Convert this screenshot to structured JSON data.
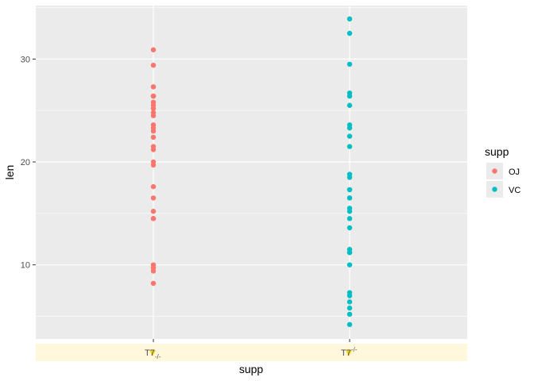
{
  "chart_data": {
    "type": "scatter",
    "xlabel": "supp",
    "ylabel": "len",
    "categories": [
      "OJ",
      "VC"
    ],
    "x_tick_labels": [
      {
        "base": "T7",
        "sub": "-/-"
      },
      {
        "base": "T7",
        "sup": "-/-"
      }
    ],
    "ylim": [
      2.8,
      35.2
    ],
    "yticks": [
      10,
      20,
      30
    ],
    "grid": true,
    "legend": {
      "title": "supp",
      "position": "right",
      "entries": [
        {
          "label": "OJ",
          "color": "#F8766D"
        },
        {
          "label": "VC",
          "color": "#00BFC4"
        }
      ]
    },
    "series": [
      {
        "name": "OJ",
        "color": "#F8766D",
        "category": "OJ",
        "values": [
          15.2,
          21.5,
          17.6,
          9.7,
          14.5,
          10.0,
          8.2,
          9.4,
          16.5,
          9.7,
          19.7,
          23.3,
          23.6,
          26.4,
          20.0,
          25.2,
          25.8,
          21.2,
          14.5,
          27.3,
          25.5,
          26.4,
          22.4,
          24.5,
          24.8,
          30.9,
          26.4,
          27.3,
          29.4,
          23.0
        ]
      },
      {
        "name": "VC",
        "color": "#00BFC4",
        "category": "VC",
        "values": [
          4.2,
          11.5,
          7.3,
          5.8,
          6.4,
          10.0,
          11.2,
          11.2,
          5.2,
          7.0,
          16.5,
          16.5,
          15.2,
          17.3,
          22.5,
          17.3,
          13.6,
          14.5,
          18.8,
          15.5,
          23.6,
          18.5,
          33.9,
          25.5,
          26.4,
          32.5,
          26.7,
          21.5,
          23.3,
          29.5
        ]
      }
    ]
  },
  "colors": {
    "panel_background": "#EBEBEB",
    "grid_major": "#FFFFFF",
    "highlight_band": "#FFF8DC",
    "highlight_marker": "#F2D21B"
  }
}
